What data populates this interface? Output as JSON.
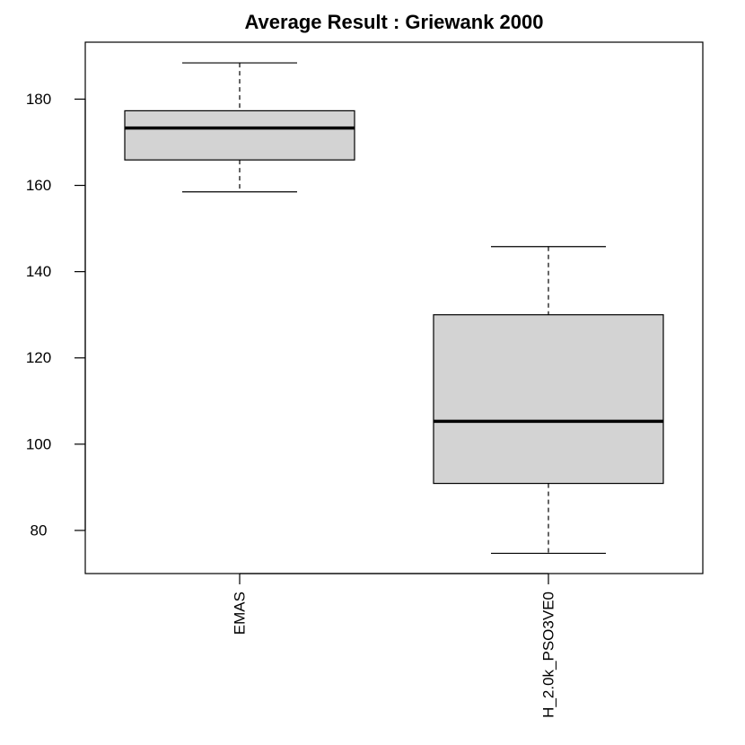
{
  "chart_data": {
    "type": "boxplot",
    "title": "Average Result : Griewank 2000",
    "xlabel": "",
    "ylabel": "",
    "ylim": [
      70,
      193.2
    ],
    "y_ticks": [
      80,
      100,
      120,
      140,
      160,
      180
    ],
    "grid": false,
    "colors": {
      "box_fill": "#d3d3d3",
      "stroke": "#000000",
      "background": "#ffffff"
    },
    "categories": [
      "EMAS",
      "H_2.0k_PSO3VE0"
    ],
    "boxes": [
      {
        "label": "EMAS",
        "min": 158.5,
        "q1": 165.9,
        "median": 173.3,
        "q3": 177.3,
        "max": 188.4
      },
      {
        "label": "H_2.0k_PSO3VE0",
        "min": 74.7,
        "q1": 90.9,
        "median": 105.3,
        "q3": 130.0,
        "max": 145.8
      }
    ]
  }
}
